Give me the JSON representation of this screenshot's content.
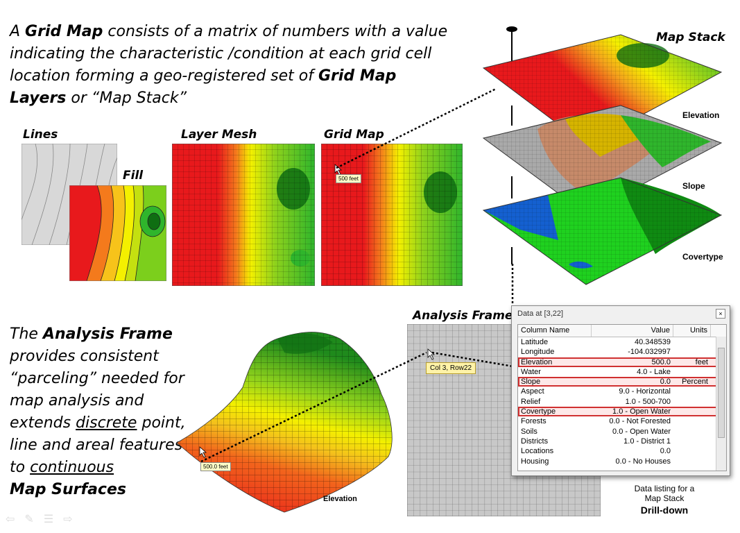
{
  "intro": {
    "p1": "A ",
    "b1": "Grid Map",
    "p2": " consists of a matrix of numbers with a value indicating the characteristic /condition at each grid cell location forming a geo-registered set of ",
    "b2": "Grid Map Layers",
    "p3": " or “Map Stack”"
  },
  "panels": {
    "lines": "Lines",
    "fill": "Fill",
    "layer_mesh": "Layer Mesh",
    "grid_map": "Grid Map",
    "grid_tooltip": "500 feet"
  },
  "map_stack": {
    "title": "Map Stack",
    "layers": [
      "Elevation",
      "Slope",
      "Covertype"
    ]
  },
  "analysis": {
    "p1": "The ",
    "b1": "Analysis Frame",
    "p2": " provides consistent “parceling” needed for map analysis and extends ",
    "u1": "discrete",
    "p3": " point, line and areal features to ",
    "u2": "continuous",
    "b2": "Map Surfaces",
    "frame_label": "Analysis Frame",
    "cell_tooltip": "Col 3, Row22",
    "surface_tooltip": "500.0 feet",
    "surface_label": "Elevation"
  },
  "data_window": {
    "title": "Data at [3,22]",
    "close": "×",
    "headers": [
      "Column Name",
      "Value",
      "Units"
    ],
    "rows": [
      {
        "name": "Latitude",
        "value": "40.348539",
        "unit": "",
        "hl": false
      },
      {
        "name": "Longitude",
        "value": "-104.032997",
        "unit": "",
        "hl": false
      },
      {
        "name": "Elevation",
        "value": "500.0",
        "unit": "feet",
        "hl": true
      },
      {
        "name": "Water",
        "value": "4.0 - Lake",
        "unit": "",
        "hl": false
      },
      {
        "name": "Slope",
        "value": "0.0",
        "unit": "Percent",
        "hl": true
      },
      {
        "name": "Aspect",
        "value": "9.0 - Horizontal",
        "unit": "",
        "hl": false
      },
      {
        "name": "Relief",
        "value": "1.0 - 500-700",
        "unit": "",
        "hl": false
      },
      {
        "name": "Covertype",
        "value": "1.0 - Open Water",
        "unit": "",
        "hl": true
      },
      {
        "name": "Forests",
        "value": "0.0 - Not Forested",
        "unit": "",
        "hl": false
      },
      {
        "name": "Soils",
        "value": "0.0 - Open Water",
        "unit": "",
        "hl": false
      },
      {
        "name": "Districts",
        "value": "1.0 - District 1",
        "unit": "",
        "hl": false
      },
      {
        "name": "Locations",
        "value": "0.0",
        "unit": "",
        "hl": false
      },
      {
        "name": "Housing",
        "value": "0.0 - No Houses",
        "unit": "",
        "hl": false
      }
    ]
  },
  "caption": {
    "line1": "Data listing for a",
    "line2": "Map Stack",
    "line3": "Drill-down"
  },
  "colors": {
    "red": "#e8191c",
    "yellow": "#f4f000",
    "green": "#2fb52c",
    "dark_green": "#0f6e12",
    "highlight": "#d03030"
  }
}
